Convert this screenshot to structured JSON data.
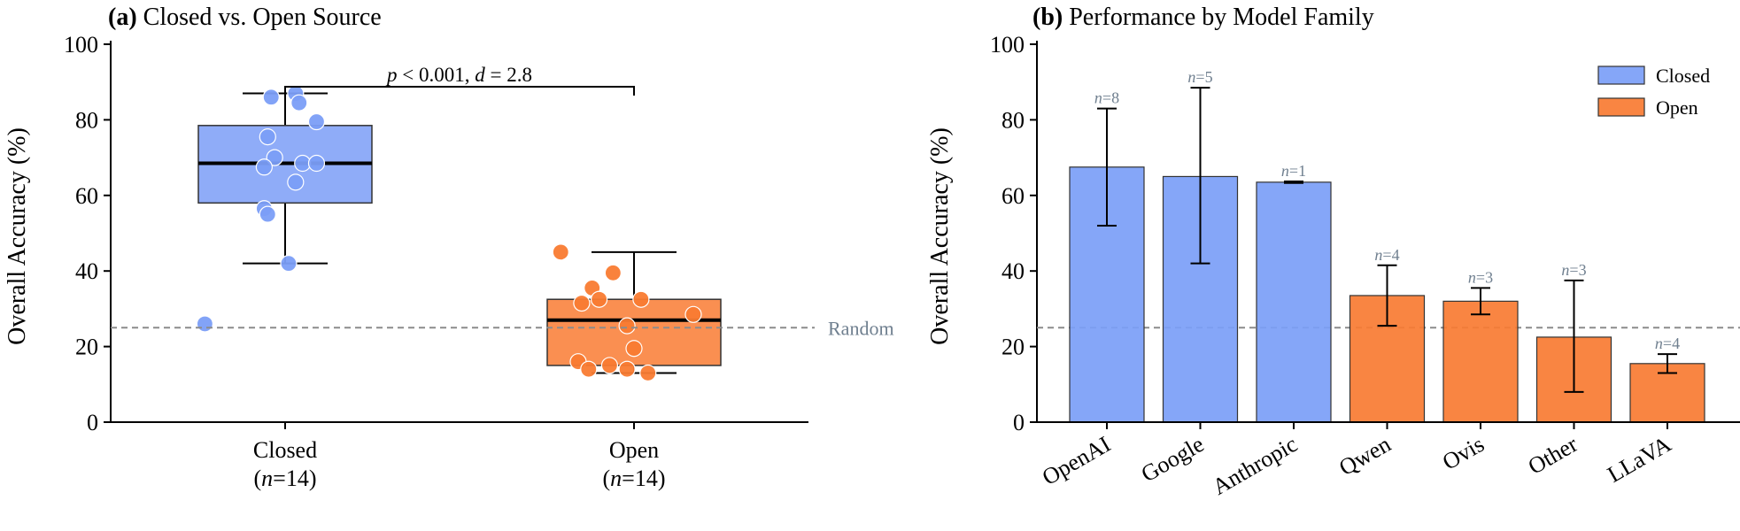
{
  "chart_data": [
    {
      "type": "box",
      "panel_label": "(a)",
      "title": "Closed vs. Open Source",
      "ylabel": "Overall Accuracy (%)",
      "ylim": [
        0,
        100
      ],
      "yticks": [
        0,
        20,
        40,
        60,
        80,
        100
      ],
      "categories": [
        "Closed",
        "Open"
      ],
      "category_counts": [
        "(n=14)",
        "(n=14)"
      ],
      "boxes": [
        {
          "name": "Closed",
          "color": "#7B9EF7",
          "q1": 58,
          "median": 68.5,
          "q3": 78.5,
          "whisker_low": 42,
          "whisker_high": 87
        },
        {
          "name": "Open",
          "color": "#F97B32",
          "q1": 15,
          "median": 27,
          "q3": 32.5,
          "whisker_low": 13,
          "whisker_high": 45
        }
      ],
      "points": [
        {
          "group": "Closed",
          "jitter": -0.04,
          "y": 86
        },
        {
          "group": "Closed",
          "jitter": 0.03,
          "y": 87
        },
        {
          "group": "Closed",
          "jitter": 0.04,
          "y": 84.5
        },
        {
          "group": "Closed",
          "jitter": 0.09,
          "y": 79.5
        },
        {
          "group": "Closed",
          "jitter": -0.05,
          "y": 75.5
        },
        {
          "group": "Closed",
          "jitter": -0.03,
          "y": 70
        },
        {
          "group": "Closed",
          "jitter": 0.05,
          "y": 68.5
        },
        {
          "group": "Closed",
          "jitter": 0.09,
          "y": 68.5
        },
        {
          "group": "Closed",
          "jitter": -0.06,
          "y": 67.5
        },
        {
          "group": "Closed",
          "jitter": 0.03,
          "y": 63.5
        },
        {
          "group": "Closed",
          "jitter": -0.06,
          "y": 56.5
        },
        {
          "group": "Closed",
          "jitter": -0.05,
          "y": 55
        },
        {
          "group": "Closed",
          "jitter": 0.01,
          "y": 42
        },
        {
          "group": "Closed",
          "jitter": -0.23,
          "y": 26
        },
        {
          "group": "Open",
          "jitter": -0.21,
          "y": 45
        },
        {
          "group": "Open",
          "jitter": -0.06,
          "y": 39.5
        },
        {
          "group": "Open",
          "jitter": -0.12,
          "y": 35.5
        },
        {
          "group": "Open",
          "jitter": 0.02,
          "y": 32.5
        },
        {
          "group": "Open",
          "jitter": -0.1,
          "y": 32.5
        },
        {
          "group": "Open",
          "jitter": -0.15,
          "y": 31.5
        },
        {
          "group": "Open",
          "jitter": 0.17,
          "y": 28.5
        },
        {
          "group": "Open",
          "jitter": -0.02,
          "y": 25.5
        },
        {
          "group": "Open",
          "jitter": 0.0,
          "y": 19.5
        },
        {
          "group": "Open",
          "jitter": -0.16,
          "y": 16
        },
        {
          "group": "Open",
          "jitter": -0.07,
          "y": 15
        },
        {
          "group": "Open",
          "jitter": -0.13,
          "y": 14
        },
        {
          "group": "Open",
          "jitter": -0.02,
          "y": 14
        },
        {
          "group": "Open",
          "jitter": 0.04,
          "y": 13
        }
      ],
      "reference_line": {
        "y": 25,
        "label": "Random",
        "style": "dashed",
        "color": "#8C8C8C"
      },
      "annotation": "p < 0.001, d = 2.8",
      "grid": false
    },
    {
      "type": "bar",
      "panel_label": "(b)",
      "title": "Performance by Model Family",
      "ylabel": "Overall Accuracy (%)",
      "ylim": [
        0,
        100
      ],
      "yticks": [
        0,
        20,
        40,
        60,
        80,
        100
      ],
      "categories": [
        "OpenAI",
        "Google",
        "Anthropic",
        "Qwen",
        "Ovis",
        "Other",
        "LLaVA"
      ],
      "values": [
        67.5,
        65,
        63.5,
        33.5,
        32,
        22.5,
        15.5
      ],
      "error_low": [
        52,
        42,
        63.3,
        25.5,
        28.5,
        8,
        13
      ],
      "error_high": [
        83,
        88.5,
        63.7,
        41.5,
        35.5,
        37.5,
        18
      ],
      "groups": [
        "Closed",
        "Closed",
        "Closed",
        "Open",
        "Open",
        "Open",
        "Open"
      ],
      "counts": [
        "n=8",
        "n=5",
        "n=1",
        "n=4",
        "n=3",
        "n=3",
        "n=4"
      ],
      "series": [
        {
          "name": "Closed",
          "color": "#7B9EF7"
        },
        {
          "name": "Open",
          "color": "#F97B32"
        }
      ],
      "reference_line": {
        "y": 25,
        "style": "dashed",
        "color": "#8C8C8C"
      },
      "legend_position": "top-right",
      "grid": false
    }
  ]
}
